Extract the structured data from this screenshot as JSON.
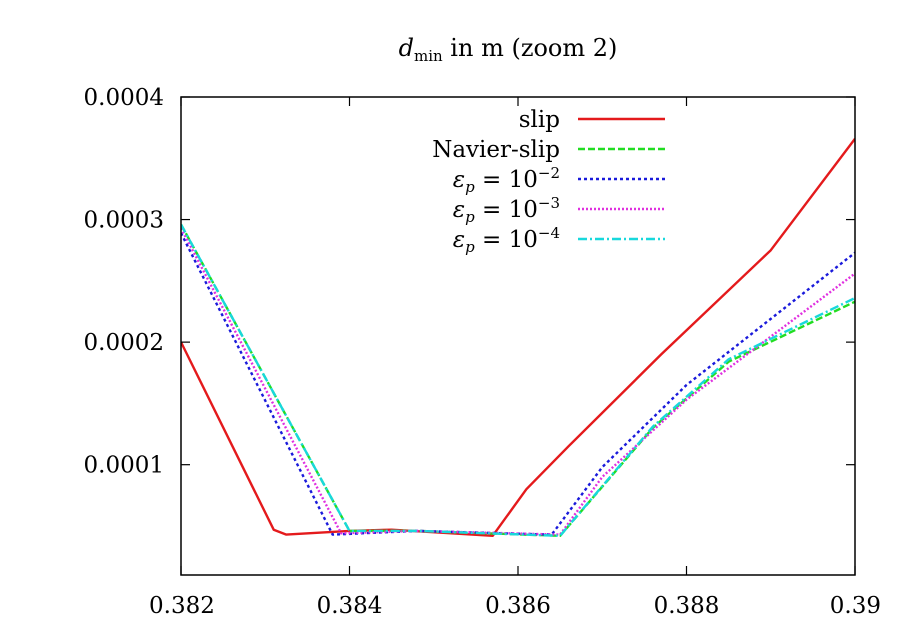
{
  "chart_data": {
    "type": "line",
    "title": "d_min in m (zoom 2)",
    "title_parts": {
      "var": "d",
      "sub": "min",
      "rest": " in m (zoom 2)"
    },
    "xlabel": "",
    "ylabel": "",
    "xlim": [
      0.382,
      0.39
    ],
    "ylim": [
      1e-05,
      0.0004
    ],
    "xticks": [
      0.382,
      0.384,
      0.386,
      0.388,
      0.39
    ],
    "xtick_labels": [
      "0.382",
      "0.384",
      "0.386",
      "0.388",
      "0.39"
    ],
    "yticks": [
      0.0001,
      0.0002,
      0.0003,
      0.0004
    ],
    "ytick_labels": [
      "0.0001",
      "0.0002",
      "0.0003",
      "0.0004"
    ],
    "grid": false,
    "legend_position": "top-right",
    "series": [
      {
        "name": "slip",
        "label_parts": {
          "text": "slip"
        },
        "color": "#e41a1c",
        "dash": "solid",
        "points": [
          [
            0.382,
            0.0002
          ],
          [
            0.3831,
            4.7e-05
          ],
          [
            0.38325,
            4.3e-05
          ],
          [
            0.384,
            4.6e-05
          ],
          [
            0.3845,
            4.7e-05
          ],
          [
            0.3857,
            4.2e-05
          ],
          [
            0.3861,
            8e-05
          ],
          [
            0.3866,
            0.000115
          ],
          [
            0.3877,
            0.00019
          ],
          [
            0.389,
            0.000275
          ],
          [
            0.39,
            0.000366
          ]
        ]
      },
      {
        "name": "Navier-slip",
        "label_parts": {
          "text": "Navier-slip"
        },
        "color": "#22dd22",
        "dash": "dashed",
        "points": [
          [
            0.382,
            0.000296
          ],
          [
            0.384,
            4.6e-05
          ],
          [
            0.3848,
            4.6e-05
          ],
          [
            0.3865,
            4.2e-05
          ],
          [
            0.3876,
            0.00013
          ],
          [
            0.3885,
            0.000184
          ],
          [
            0.39,
            0.000233
          ]
        ]
      },
      {
        "name": "εp = 10−2",
        "label_parts": {
          "var": "ε",
          "sub": "p",
          "eq": " = 10",
          "sup": "−2"
        },
        "color": "#1a1adb",
        "dash": "dotted",
        "points": [
          [
            0.382,
            0.000289
          ],
          [
            0.3838,
            4.3e-05
          ],
          [
            0.3848,
            4.6e-05
          ],
          [
            0.3864,
            4.3e-05
          ],
          [
            0.387,
            9.8e-05
          ],
          [
            0.388,
            0.000165
          ],
          [
            0.39,
            0.000273
          ]
        ]
      },
      {
        "name": "εp = 10−3",
        "label_parts": {
          "var": "ε",
          "sub": "p",
          "eq": " = 10",
          "sup": "−3"
        },
        "color": "#e030e0",
        "dash": "fine-dotted",
        "points": [
          [
            0.382,
            0.000293
          ],
          [
            0.3839,
            4.4e-05
          ],
          [
            0.3848,
            4.6e-05
          ],
          [
            0.3865,
            4.3e-05
          ],
          [
            0.387,
            9e-05
          ],
          [
            0.388,
            0.000153
          ],
          [
            0.39,
            0.000256
          ]
        ]
      },
      {
        "name": "εp = 10−4",
        "label_parts": {
          "var": "ε",
          "sub": "p",
          "eq": " = 10",
          "sup": "−4"
        },
        "color": "#18d8dc",
        "dash": "dashdot",
        "points": [
          [
            0.382,
            0.000296
          ],
          [
            0.384,
            4.6e-05
          ],
          [
            0.3848,
            4.6e-05
          ],
          [
            0.3865,
            4.2e-05
          ],
          [
            0.3876,
            0.000131
          ],
          [
            0.3885,
            0.000186
          ],
          [
            0.39,
            0.000236
          ]
        ]
      }
    ]
  }
}
